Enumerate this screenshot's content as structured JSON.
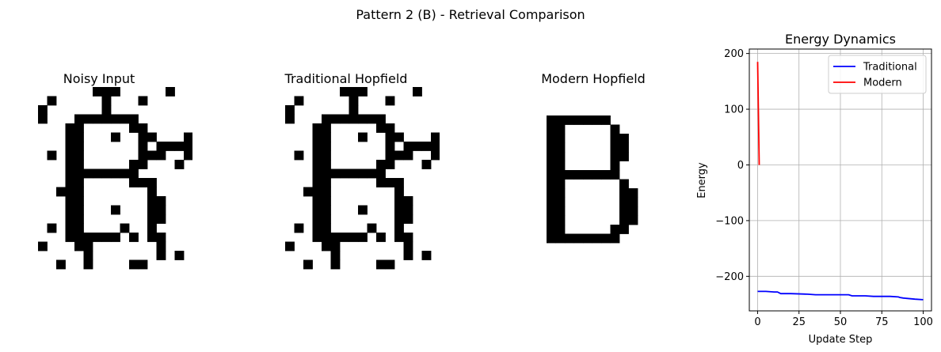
{
  "suptitle": "Pattern 2 (B) - Retrieval Comparison",
  "colors": {
    "traditional": "#0000ff",
    "modern": "#ff0000",
    "pixel_on": "#000000",
    "pixel_off": "#ffffff",
    "grid": "#b0b0b0"
  },
  "panels": [
    {
      "title": "Noisy Input",
      "rows": [
        "........###.....#..",
        "...#.....#...#.....",
        "..#......#.........",
        "..#...#######......",
        ".....##.....##.....",
        ".....##...#..##...#",
        ".....##......#.####",
        "...#.##......###..#",
        ".....##.....##...#.",
        ".....########......",
        ".....##.....###....",
        "....###.......#....",
        ".....##.......##...",
        ".....##...#...##...",
        ".....##.......##...",
        "...#.##....#..#....",
        ".....######.#.##...",
        "..#...##.......#...",
        ".......#.......#.#.",
        "....#..#....##....."
      ]
    },
    {
      "title": "Traditional Hopfield",
      "rows": [
        "........###.....#..",
        "...#.....#...#.....",
        "..#......#.........",
        "..#...#######......",
        ".....##.....##.....",
        ".....##...#..##...#",
        ".....##......#.####",
        "...#.##......###..#",
        ".....##.....##...#.",
        ".....########......",
        ".....##.....###....",
        "....###.......#....",
        ".....##.......##...",
        ".....##...#...##...",
        ".....##.......##...",
        "...#.##....#..#....",
        ".....######.#.##...",
        "..#...##.......#...",
        ".......#.......#.#.",
        "....#..#....##....."
      ]
    },
    {
      "title": "Modern Hopfield",
      "rows": [
        "#######...",
        "##.....#..",
        "##.....##.",
        "##.....##.",
        "##.....##.",
        "##.....#..",
        "########..",
        "##......#.",
        "##......##",
        "##......##",
        "##......##",
        "##......##",
        "##.....##.",
        "########.."
      ]
    }
  ],
  "chart_data": {
    "type": "line",
    "title": "Energy Dynamics",
    "xlabel": "Update Step",
    "ylabel": "Energy",
    "xlim": [
      -5,
      105
    ],
    "ylim": [
      -262,
      208
    ],
    "xticks": [
      0,
      25,
      50,
      75,
      100
    ],
    "yticks": [
      -200,
      -100,
      0,
      100,
      200
    ],
    "xtick_labels": [
      "0",
      "25",
      "50",
      "75",
      "100"
    ],
    "ytick_labels": [
      "−200",
      "−100",
      "0",
      "100",
      "200"
    ],
    "grid": true,
    "legend_position": "top-right",
    "series": [
      {
        "name": "Traditional",
        "color": "#0000ff",
        "x": [
          0,
          5,
          10,
          12,
          14,
          20,
          30,
          35,
          45,
          55,
          57,
          60,
          65,
          70,
          80,
          85,
          86,
          88,
          95,
          100
        ],
        "y": [
          -227,
          -227,
          -228,
          -228,
          -231,
          -231,
          -232,
          -233,
          -233,
          -233,
          -235,
          -235,
          -235,
          -236,
          -236,
          -237,
          -238,
          -239,
          -241,
          -242
        ]
      },
      {
        "name": "Modern",
        "color": "#ff0000",
        "x": [
          0,
          1
        ],
        "y": [
          185,
          0
        ]
      }
    ]
  }
}
